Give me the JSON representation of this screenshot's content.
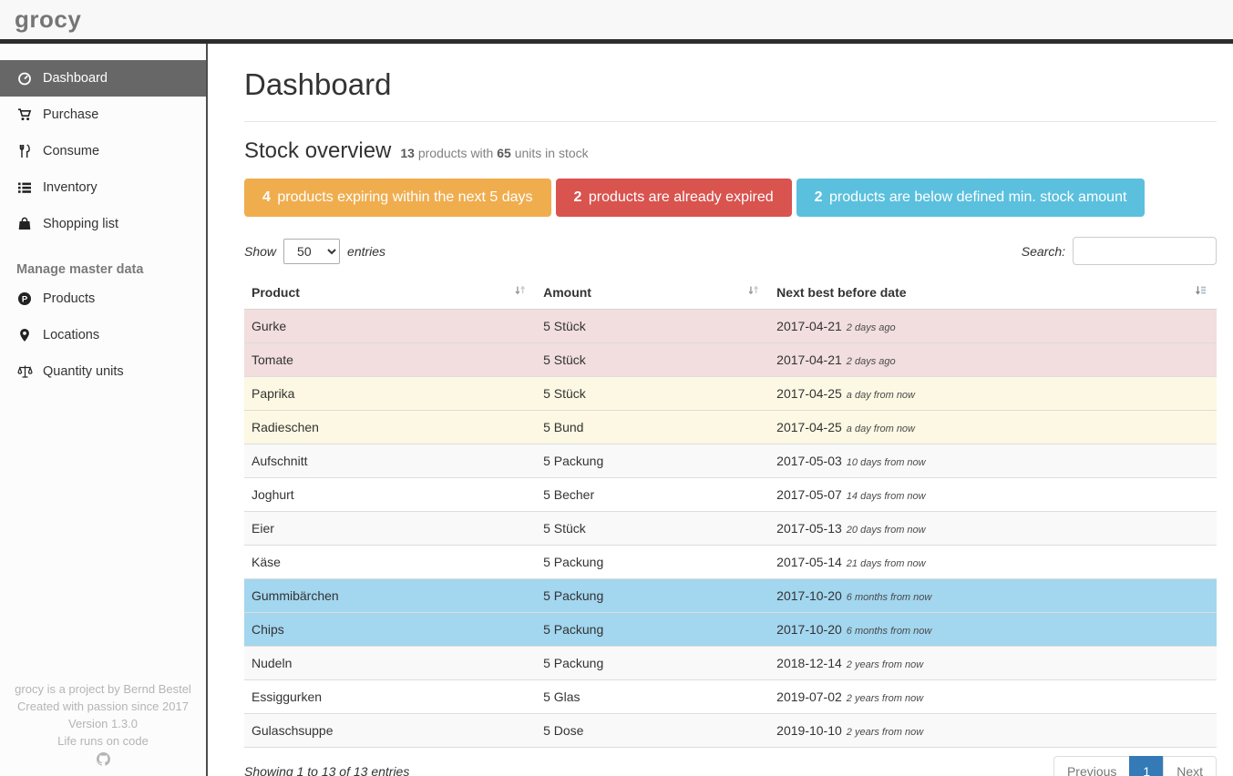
{
  "navbar": {
    "brand": "grocy"
  },
  "sidebar": {
    "items": [
      {
        "label": "Dashboard",
        "icon": "dashboard-gauge-icon",
        "active": true
      },
      {
        "label": "Purchase",
        "icon": "shopping-cart-icon",
        "active": false
      },
      {
        "label": "Consume",
        "icon": "cutlery-icon",
        "active": false
      },
      {
        "label": "Inventory",
        "icon": "list-icon",
        "active": false
      },
      {
        "label": "Shopping list",
        "icon": "shopping-bag-icon",
        "active": false
      }
    ],
    "section_heading": "Manage master data",
    "master_items": [
      {
        "label": "Products",
        "icon": "product-p-circle-icon",
        "active": false
      },
      {
        "label": "Locations",
        "icon": "map-marker-icon",
        "active": false
      },
      {
        "label": "Quantity units",
        "icon": "balance-scale-icon",
        "active": false
      }
    ],
    "footer_lines": [
      "grocy is a project by Bernd Bestel",
      "Created with passion since 2017",
      "Version 1.3.0",
      "Life runs on code"
    ],
    "footer_icon": "github-octocat-icon"
  },
  "main": {
    "page_title": "Dashboard",
    "section": {
      "title": "Stock overview",
      "products_count": "13",
      "mid_text": "products with",
      "units_count": "65",
      "end_text": "units in stock"
    },
    "badges": [
      {
        "count": "4",
        "text": "products expiring within the next 5 days",
        "color": "#f0ad4e"
      },
      {
        "count": "2",
        "text": "products are already expired",
        "color": "#d9534f"
      },
      {
        "count": "2",
        "text": "products are below defined min. stock amount",
        "color": "#5bc0de"
      }
    ],
    "controls": {
      "show_label": "Show",
      "entries_value": "50",
      "entries_label": "entries",
      "search_label": "Search:",
      "search_value": ""
    },
    "table": {
      "columns": [
        "Product",
        "Amount",
        "Next best before date"
      ],
      "rows": [
        {
          "product": "Gurke",
          "amount": "5 Stück",
          "date": "2017-04-21",
          "relative": "2 days ago",
          "status": "expired"
        },
        {
          "product": "Tomate",
          "amount": "5 Stück",
          "date": "2017-04-21",
          "relative": "2 days ago",
          "status": "expired"
        },
        {
          "product": "Paprika",
          "amount": "5 Stück",
          "date": "2017-04-25",
          "relative": "a day from now",
          "status": "expiring"
        },
        {
          "product": "Radieschen",
          "amount": "5 Bund",
          "date": "2017-04-25",
          "relative": "a day from now",
          "status": "expiring"
        },
        {
          "product": "Aufschnitt",
          "amount": "5 Packung",
          "date": "2017-05-03",
          "relative": "10 days from now",
          "status": "none"
        },
        {
          "product": "Joghurt",
          "amount": "5 Becher",
          "date": "2017-05-07",
          "relative": "14 days from now",
          "status": "none"
        },
        {
          "product": "Eier",
          "amount": "5 Stück",
          "date": "2017-05-13",
          "relative": "20 days from now",
          "status": "none"
        },
        {
          "product": "Käse",
          "amount": "5 Packung",
          "date": "2017-05-14",
          "relative": "21 days from now",
          "status": "none"
        },
        {
          "product": "Gummibärchen",
          "amount": "5 Packung",
          "date": "2017-10-20",
          "relative": "6 months from now",
          "status": "belowmin"
        },
        {
          "product": "Chips",
          "amount": "5 Packung",
          "date": "2017-10-20",
          "relative": "6 months from now",
          "status": "belowmin"
        },
        {
          "product": "Nudeln",
          "amount": "5 Packung",
          "date": "2018-12-14",
          "relative": "2 years from now",
          "status": "none"
        },
        {
          "product": "Essiggurken",
          "amount": "5 Glas",
          "date": "2019-07-02",
          "relative": "2 years from now",
          "status": "none"
        },
        {
          "product": "Gulaschsuppe",
          "amount": "5 Dose",
          "date": "2019-10-10",
          "relative": "2 years from now",
          "status": "none"
        }
      ]
    },
    "pagination": {
      "info": "Showing 1 to 13 of 13 entries",
      "previous_label": "Previous",
      "page_label": "1",
      "next_label": "Next"
    }
  },
  "colors": {
    "accent_blue": "#337ab7",
    "warning": "#f0ad4e",
    "danger": "#d9534f",
    "info": "#5bc0de",
    "row_expired": "#f2dede",
    "row_expiring": "#fcf8e3",
    "row_below_min": "#a3d6ef",
    "navbar_border": "#2d2d2d",
    "sidebar_active": "#676767"
  }
}
